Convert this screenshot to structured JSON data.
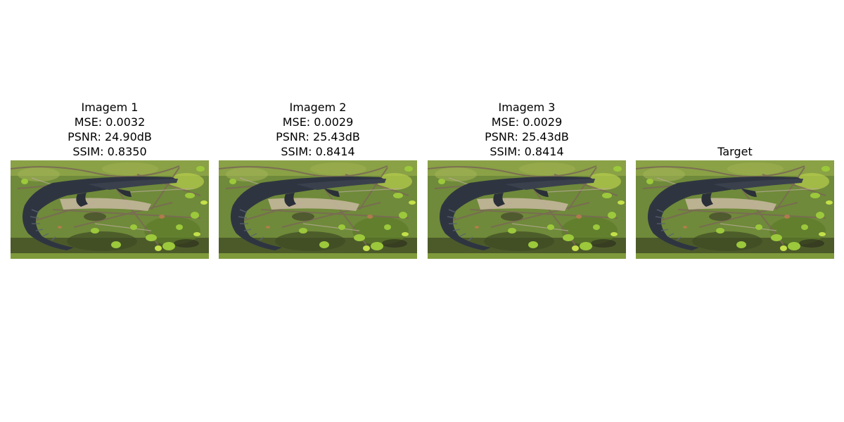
{
  "panels": [
    {
      "title": "Imagem 1",
      "mse": "MSE: 0.0032",
      "psnr": "PSNR: 24.90dB",
      "ssim": "SSIM: 0.8350"
    },
    {
      "title": "Imagem 2",
      "mse": "MSE: 0.0029",
      "psnr": "PSNR: 25.43dB",
      "ssim": "SSIM: 0.8414"
    },
    {
      "title": "Imagem 3",
      "mse": "MSE: 0.0029",
      "psnr": "PSNR: 25.43dB",
      "ssim": "SSIM: 0.8414"
    },
    {
      "title": "Target"
    }
  ],
  "colors": {
    "moss": "#6f8a3a",
    "leaf": "#9cc83c",
    "alligator": "#2f3540",
    "branch": "#7a6a55",
    "mud": "#3a3a26"
  }
}
